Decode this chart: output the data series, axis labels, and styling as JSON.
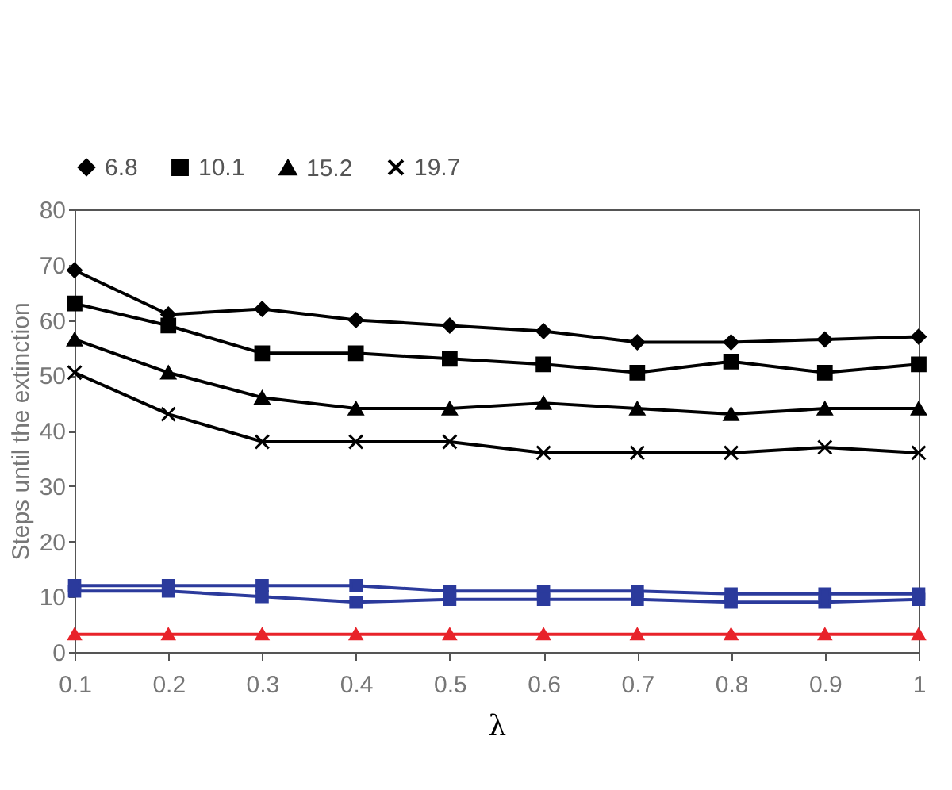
{
  "chart_data": {
    "type": "line",
    "xlabel": "λ",
    "ylabel": "Steps until the extinction",
    "x": [
      0.1,
      0.2,
      0.3,
      0.4,
      0.5,
      0.6,
      0.7,
      0.8,
      0.9,
      1
    ],
    "xlim": [
      0.1,
      1
    ],
    "xticks": [
      0.1,
      0.2,
      0.3,
      0.4,
      0.5,
      0.6,
      0.7,
      0.8,
      0.9,
      1
    ],
    "ylim": [
      0,
      80
    ],
    "yticks": [
      0,
      10,
      20,
      30,
      40,
      50,
      60,
      70,
      80
    ],
    "grid": false,
    "legend": "top",
    "series": [
      {
        "name": "6.8",
        "color": "#000000",
        "marker": "diamond",
        "values": [
          69,
          61,
          62,
          60,
          59,
          58,
          56,
          56,
          56.5,
          57
        ]
      },
      {
        "name": "10.1",
        "color": "#000000",
        "marker": "square",
        "values": [
          63,
          59,
          54,
          54,
          53,
          52,
          50.5,
          52.5,
          50.5,
          52
        ]
      },
      {
        "name": "15.2",
        "color": "#000000",
        "marker": "triangle",
        "values": [
          56.5,
          50.5,
          46,
          44,
          44,
          45,
          44,
          43,
          44,
          44
        ]
      },
      {
        "name": "19.7",
        "color": "#000000",
        "marker": "cross",
        "values": [
          50.5,
          43,
          38,
          38,
          38,
          36,
          36,
          36,
          37,
          36
        ]
      },
      {
        "color": "#2b3a9c",
        "marker": "square",
        "values": [
          12,
          12,
          12,
          12,
          11,
          11,
          11,
          10.5,
          10.5,
          10.5
        ]
      },
      {
        "color": "#2b3a9c",
        "marker": "square",
        "values": [
          11,
          11,
          10,
          9,
          9.5,
          9.5,
          9.5,
          9,
          9,
          9.5
        ]
      },
      {
        "color": "#e8232a",
        "marker": "triangle",
        "values": [
          3.2,
          3.2,
          3.2,
          3.2,
          3.2,
          3.2,
          3.2,
          3.2,
          3.2,
          3.2
        ]
      }
    ]
  }
}
